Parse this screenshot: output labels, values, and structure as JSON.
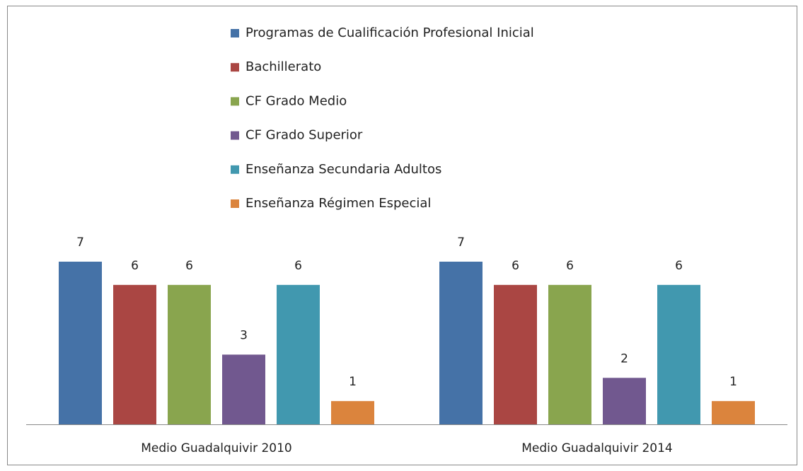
{
  "chart_data": {
    "type": "bar",
    "categories": [
      "Medio Guadalquivir 2010",
      "Medio Guadalquivir 2014"
    ],
    "series": [
      {
        "name": "Programas de Cualificación Profesional Inicial",
        "color": "#4572a7",
        "values": [
          7,
          7
        ]
      },
      {
        "name": "Bachillerato",
        "color": "#aa4643",
        "values": [
          6,
          6
        ]
      },
      {
        "name": "CF Grado Medio",
        "color": "#89a54e",
        "values": [
          6,
          6
        ]
      },
      {
        "name": "CF Grado Superior",
        "color": "#71588f",
        "values": [
          3,
          2
        ]
      },
      {
        "name": "Enseñanza Secundaria Adultos",
        "color": "#4198af",
        "values": [
          6,
          6
        ]
      },
      {
        "name": "Enseñanza Régimen Especial",
        "color": "#db843d",
        "values": [
          1,
          1
        ]
      }
    ],
    "ylim": [
      0,
      7
    ],
    "legend": "top"
  }
}
